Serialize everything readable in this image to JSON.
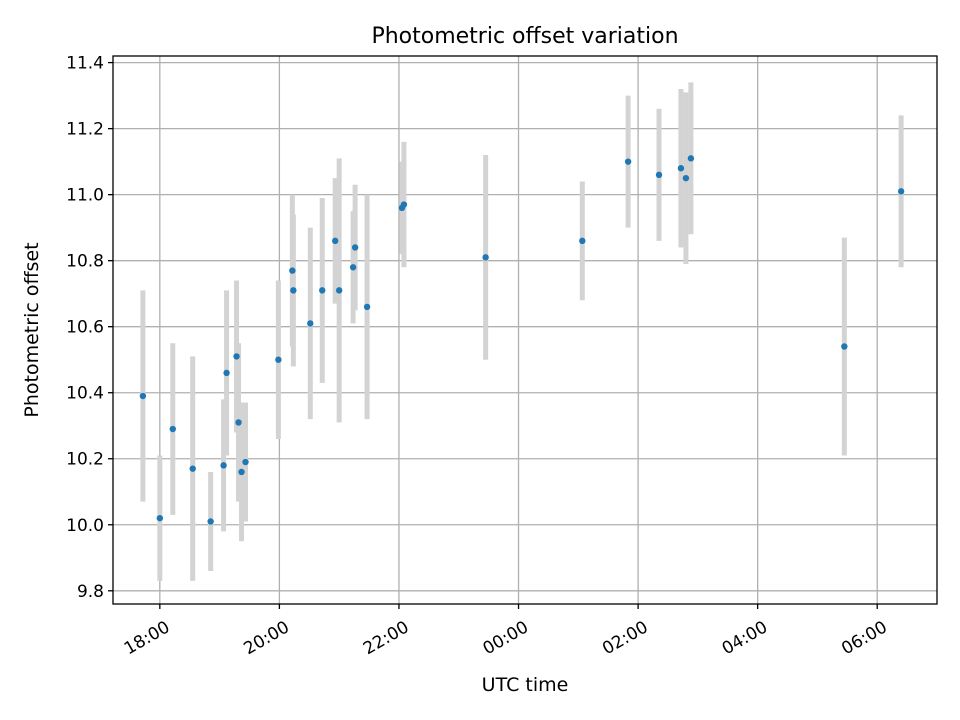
{
  "chart_data": {
    "type": "scatter",
    "title": "Photometric offset variation",
    "xlabel": "UTC time",
    "ylabel": "Photometric offset",
    "x_axis": "time",
    "xlim": [
      "17:13",
      "07:00"
    ],
    "ylim": [
      9.76,
      11.42
    ],
    "yticks": [
      9.8,
      10.0,
      10.2,
      10.4,
      10.6,
      10.8,
      11.0,
      11.2,
      11.4
    ],
    "ytick_labels": [
      "9.8",
      "10.0",
      "10.2",
      "10.4",
      "10.6",
      "10.8",
      "11.0",
      "11.2",
      "11.4"
    ],
    "xticks": [
      "18:00",
      "20:00",
      "22:00",
      "00:00",
      "02:00",
      "04:00",
      "06:00"
    ],
    "xtick_labels_rotated": true,
    "grid": true,
    "legend": "none",
    "marker_color": "#1f77b4",
    "errorbar_color": "#d3d3d3",
    "points": [
      {
        "t": "17:43",
        "y": 10.39,
        "err": 0.32
      },
      {
        "t": "18:00",
        "y": 10.02,
        "err": 0.19
      },
      {
        "t": "18:13",
        "y": 10.29,
        "err": 0.26
      },
      {
        "t": "18:33",
        "y": 10.17,
        "err": 0.34
      },
      {
        "t": "18:51",
        "y": 10.01,
        "err": 0.15
      },
      {
        "t": "19:04",
        "y": 10.18,
        "err": 0.2
      },
      {
        "t": "19:07",
        "y": 10.46,
        "err": 0.25
      },
      {
        "t": "19:17",
        "y": 10.51,
        "err": 0.23
      },
      {
        "t": "19:19",
        "y": 10.31,
        "err": 0.24
      },
      {
        "t": "19:22",
        "y": 10.16,
        "err": 0.21
      },
      {
        "t": "19:26",
        "y": 10.19,
        "err": 0.18
      },
      {
        "t": "19:59",
        "y": 10.5,
        "err": 0.24
      },
      {
        "t": "20:13",
        "y": 10.77,
        "err": 0.23
      },
      {
        "t": "20:14",
        "y": 10.71,
        "err": 0.23
      },
      {
        "t": "20:31",
        "y": 10.61,
        "err": 0.29
      },
      {
        "t": "20:43",
        "y": 10.71,
        "err": 0.28
      },
      {
        "t": "20:56",
        "y": 10.86,
        "err": 0.19
      },
      {
        "t": "21:00",
        "y": 10.71,
        "err": 0.4
      },
      {
        "t": "21:14",
        "y": 10.78,
        "err": 0.17
      },
      {
        "t": "21:16",
        "y": 10.84,
        "err": 0.19
      },
      {
        "t": "21:28",
        "y": 10.66,
        "err": 0.34
      },
      {
        "t": "22:03",
        "y": 10.96,
        "err": 0.14
      },
      {
        "t": "22:05",
        "y": 10.97,
        "err": 0.19
      },
      {
        "t": "23:27",
        "y": 10.81,
        "err": 0.31
      },
      {
        "t": "01:04",
        "y": 10.86,
        "err": 0.18
      },
      {
        "t": "01:50",
        "y": 11.1,
        "err": 0.2
      },
      {
        "t": "02:21",
        "y": 11.06,
        "err": 0.2
      },
      {
        "t": "02:43",
        "y": 11.08,
        "err": 0.24
      },
      {
        "t": "02:48",
        "y": 11.05,
        "err": 0.26
      },
      {
        "t": "02:53",
        "y": 11.11,
        "err": 0.23
      },
      {
        "t": "05:27",
        "y": 10.54,
        "err": 0.33
      },
      {
        "t": "06:24",
        "y": 11.01,
        "err": 0.23
      }
    ]
  }
}
